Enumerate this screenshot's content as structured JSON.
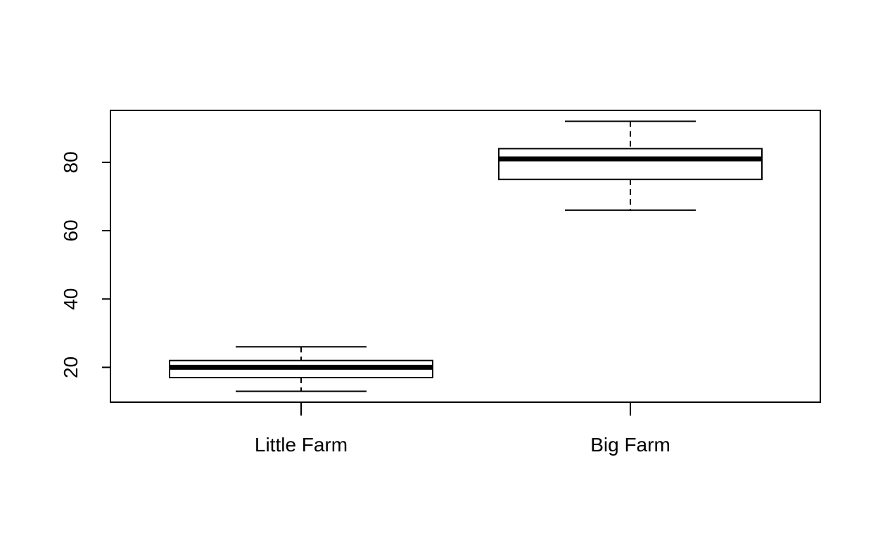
{
  "chart_data": {
    "type": "boxplot",
    "title": "",
    "xlabel": "",
    "ylabel": "",
    "categories": [
      "Little Farm",
      "Big Farm"
    ],
    "boxes": [
      {
        "category": "Little Farm",
        "min": 13,
        "q1": 17,
        "median": 20,
        "q3": 22,
        "max": 26
      },
      {
        "category": "Big Farm",
        "min": 66,
        "q1": 75,
        "median": 81,
        "q3": 84,
        "max": 92
      }
    ],
    "y_ticks": [
      20,
      40,
      60,
      80
    ],
    "ylim": [
      9.8,
      95.2
    ],
    "grid": false,
    "legend": "none"
  }
}
